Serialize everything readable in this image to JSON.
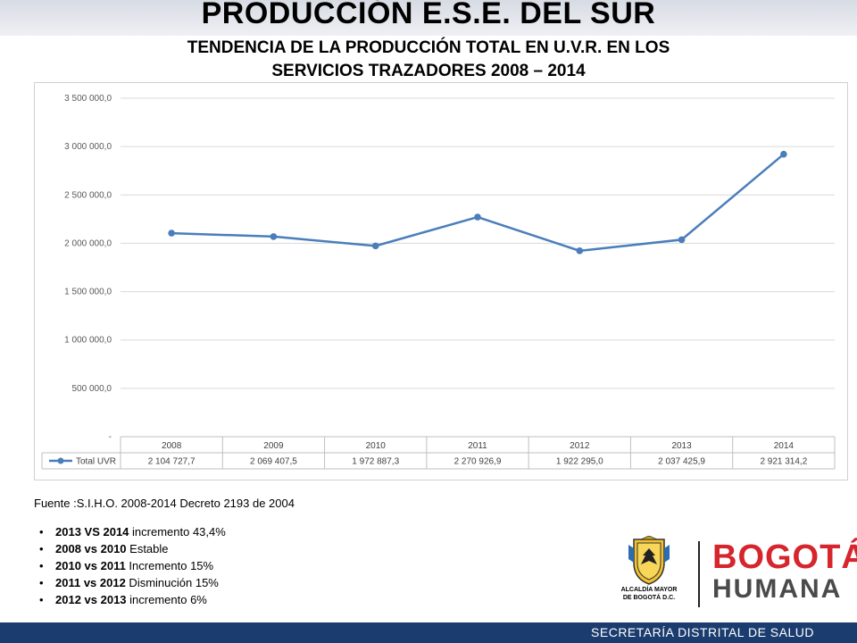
{
  "header": {
    "title": "PRODUCCIÓN  E.S.E. DEL SUR",
    "subtitle_line1": "TENDENCIA  DE LA PRODUCCIÓN TOTAL EN U.V.R. EN LOS",
    "subtitle_line2": "SERVICIOS TRAZADORES   2008 – 2014"
  },
  "chart_data": {
    "type": "line",
    "categories": [
      "2008",
      "2009",
      "2010",
      "2011",
      "2012",
      "2013",
      "2014"
    ],
    "series": [
      {
        "name": "Total UVR",
        "values": [
          2104727.7,
          2069407.5,
          1972887.3,
          2270926.9,
          1922295.0,
          2037425.9,
          2921314.2
        ],
        "labels": [
          "2 104 727,7",
          "2 069 407,5",
          "1 972 887,3",
          "2 270 926,9",
          "1 922 295,0",
          "2 037 425,9",
          "2 921 314,2"
        ],
        "color": "#4a7ebb"
      }
    ],
    "ylim": [
      0,
      3500000
    ],
    "yticks": [
      "-",
      "500 000,0",
      "1 000 000,0",
      "1 500 000,0",
      "2 000 000,0",
      "2 500 000,0",
      "3 000 000,0",
      "3 500 000,0"
    ],
    "ytick_values": [
      0,
      500000,
      1000000,
      1500000,
      2000000,
      2500000,
      3000000,
      3500000
    ],
    "grid": true,
    "legend": "data-table",
    "xlabel": "",
    "ylabel": ""
  },
  "source": "Fuente :S.I.H.O. 2008-2014  Decreto 2193 de 2004",
  "bullets": [
    {
      "bold": "2013 VS 2014",
      "text": " incremento 43,4%"
    },
    {
      "bold": "2008 vs 2010",
      "text": "  Estable"
    },
    {
      "bold": "2010 vs 2011",
      "text": "  Incremento  15%"
    },
    {
      "bold": "2011 vs 2012",
      "text": "    Disminución 15%"
    },
    {
      "bold": "2012 vs 2013",
      "text": " incremento 6%"
    }
  ],
  "logos": {
    "alcaldia_line1": "ALCALDÍA MAYOR",
    "alcaldia_line2": "DE BOGOTÁ D.C.",
    "bogota": "BOGOTÁ",
    "humana": "HUMANA"
  },
  "footer": {
    "text": "SECRETARÍA DISTRITAL DE SALUD"
  },
  "colors": {
    "series": "#4a7ebb",
    "footer": "#1b3c6e",
    "brand_red": "#d6252c"
  }
}
